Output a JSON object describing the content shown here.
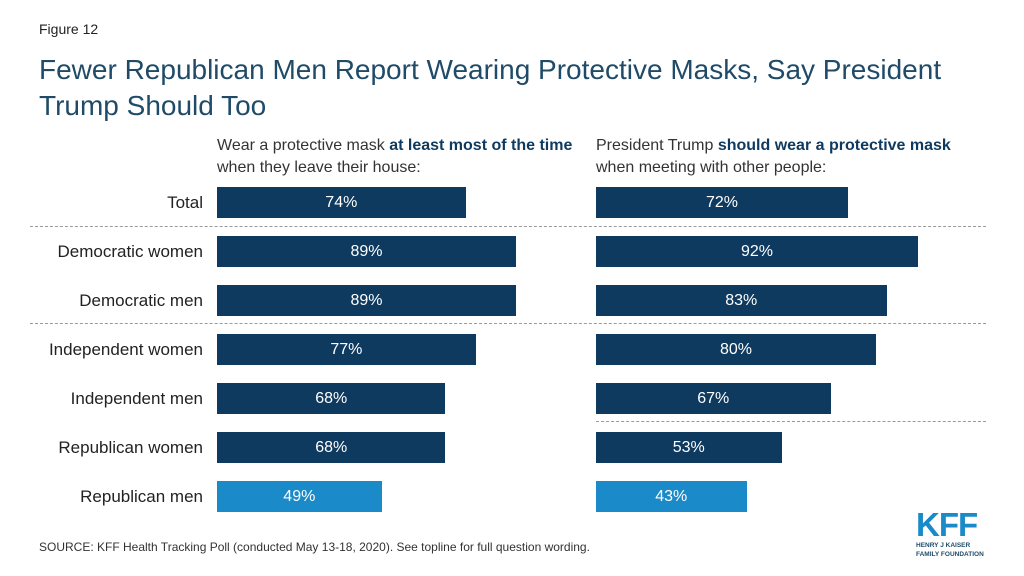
{
  "figure_label": "Figure 12",
  "title": "Fewer Republican Men Report Wearing Protective Masks, Say President Trump Should Too",
  "panels": {
    "left": {
      "pre": "Wear a protective mask ",
      "em": "at least most of the time",
      "post": " when they leave their house:"
    },
    "right": {
      "pre": "President Trump ",
      "em": "should wear a protective mask",
      "post": " when meeting with other people:"
    }
  },
  "source": "SOURCE: KFF Health Tracking Poll (conducted May 13-18, 2020). See topline for full question wording.",
  "logo": {
    "mark": "KFF",
    "line1": "HENRY J KAISER",
    "line2": "FAMILY FOUNDATION"
  },
  "colors": {
    "primary_bar": "#0f3a5f",
    "highlight_bar": "#1a8ac9"
  },
  "chart_data": {
    "type": "bar",
    "orientation": "horizontal",
    "categories": [
      "Total",
      "Democratic women",
      "Democratic men",
      "Independent women",
      "Independent men",
      "Republican women",
      "Republican men"
    ],
    "highlight_category": "Republican men",
    "series": [
      {
        "values": [
          74,
          89,
          89,
          77,
          68,
          68,
          49
        ],
        "labels": [
          "74%",
          "89%",
          "89%",
          "77%",
          "68%",
          "68%",
          "49%"
        ]
      },
      {
        "values": [
          72,
          92,
          83,
          80,
          67,
          53,
          43
        ],
        "labels": [
          "72%",
          "92%",
          "83%",
          "80%",
          "67%",
          "53%",
          "43%"
        ]
      }
    ],
    "xlim": [
      0,
      100
    ],
    "grid": false
  }
}
